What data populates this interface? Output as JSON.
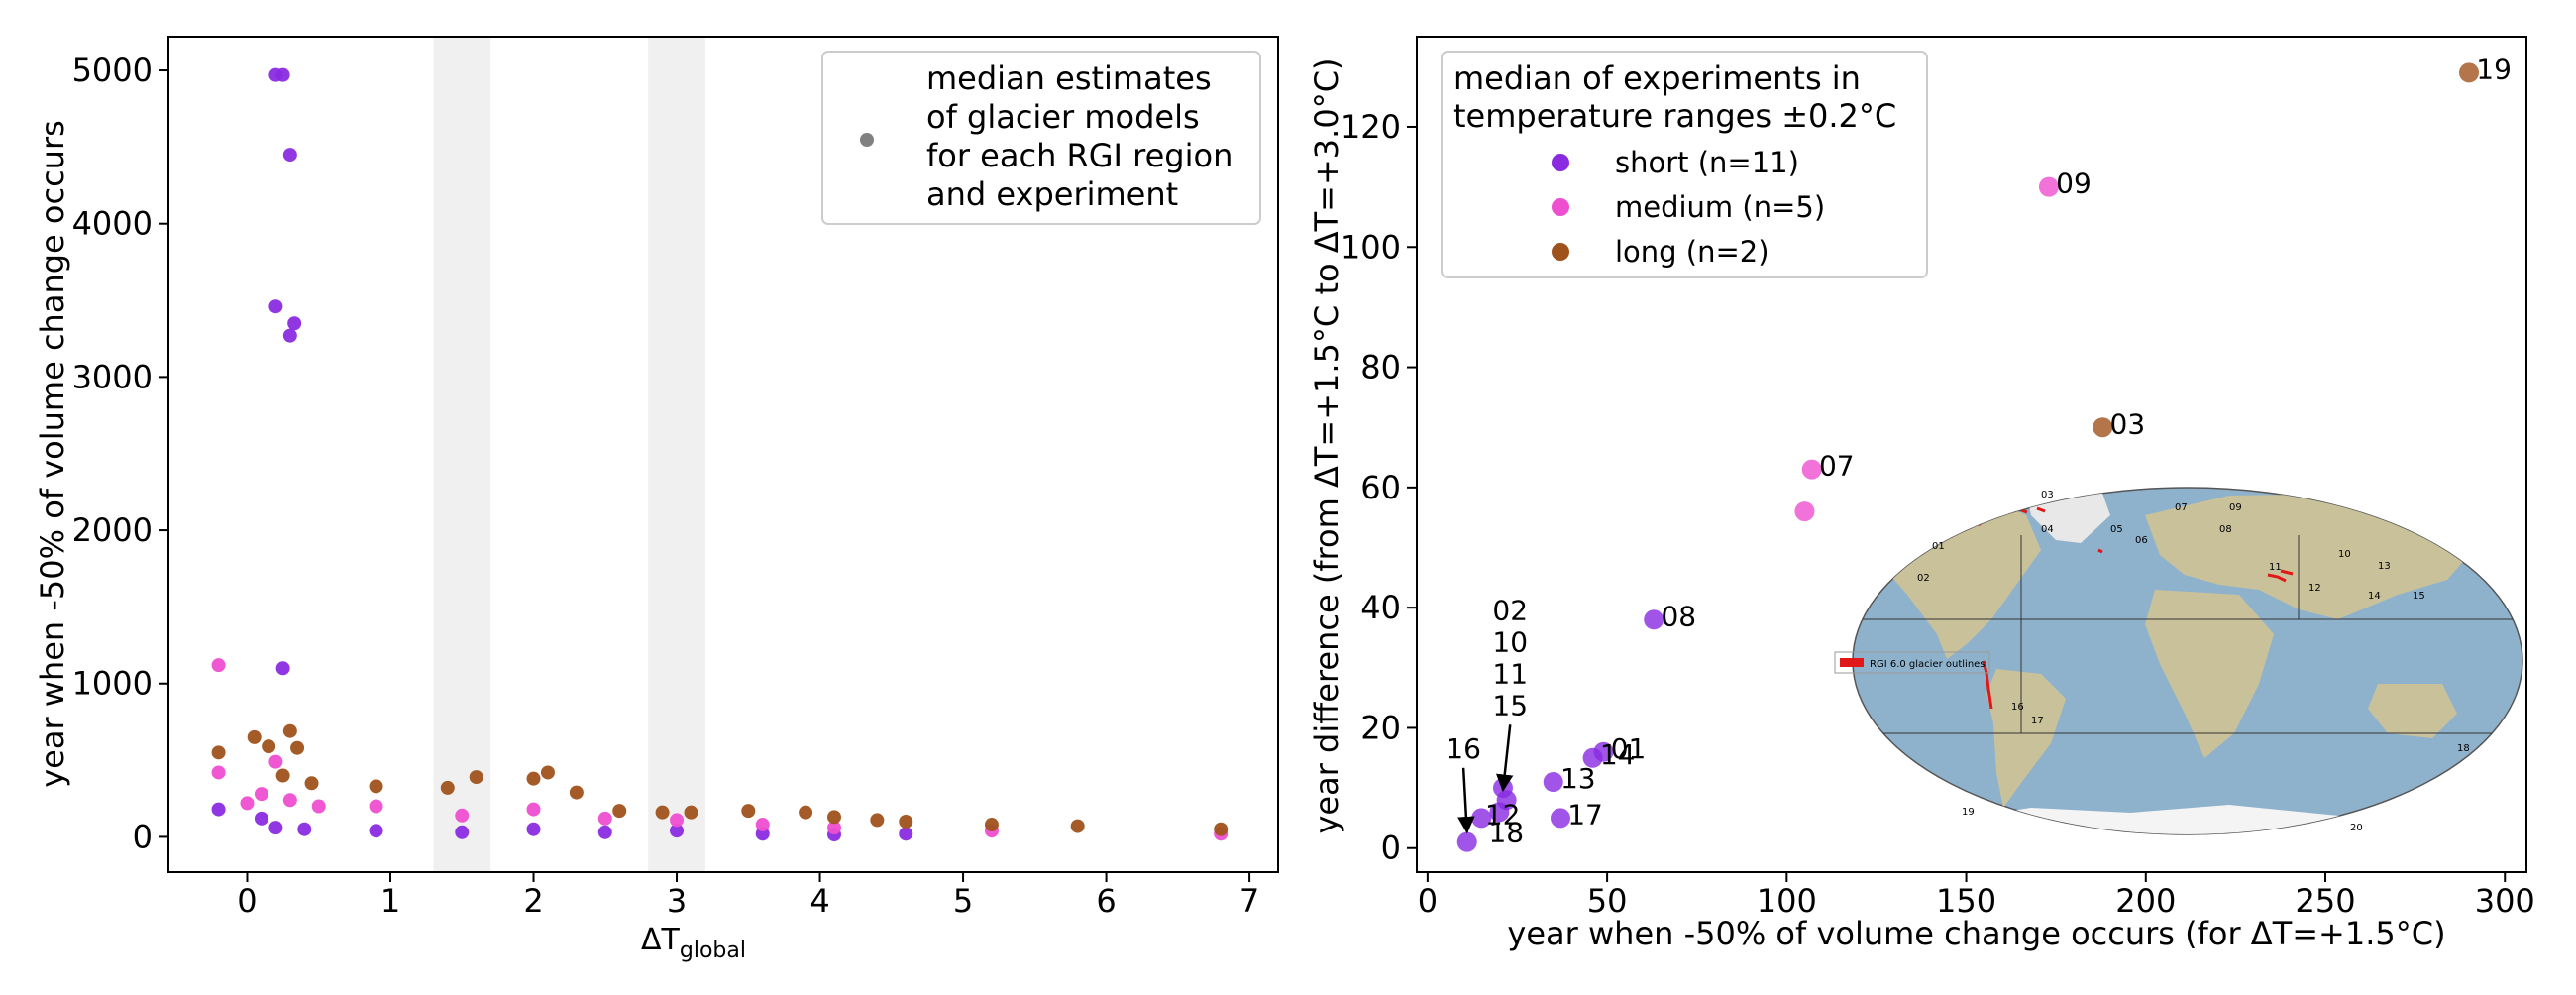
{
  "colors": {
    "short": "#8a2be2",
    "medium": "#ee4fd0",
    "long": "#a0521c",
    "grey": "#808080",
    "band": "#f0f0f0",
    "map_ocean": "#8fb2cc",
    "map_land": "#c9c19a"
  },
  "chart_data": [
    {
      "type": "scatter",
      "xlabel_main": "ΔT",
      "xlabel_sub": "global",
      "ylabel": "year when -50% of volume change occurs",
      "xlim": [
        -0.55,
        7.2
      ],
      "ylim": [
        -230,
        5220
      ],
      "xticks": [
        0,
        1,
        2,
        3,
        4,
        5,
        6,
        7
      ],
      "yticks": [
        0,
        1000,
        2000,
        3000,
        4000,
        5000
      ],
      "shaded_bands": [
        [
          1.3,
          1.7
        ],
        [
          2.8,
          3.2
        ]
      ],
      "legend": {
        "position": "top-right",
        "label_lines": [
          "median estimates",
          "of glacier models",
          "for each RGI region",
          "and experiment"
        ]
      },
      "series": [
        {
          "group": "short",
          "points": [
            [
              0.2,
              4970
            ],
            [
              0.25,
              4970
            ],
            [
              0.3,
              4450
            ],
            [
              0.2,
              3460
            ],
            [
              0.3,
              3270
            ],
            [
              0.33,
              3350
            ],
            [
              0.25,
              1100
            ],
            [
              -0.2,
              180
            ],
            [
              0.1,
              120
            ],
            [
              0.2,
              60
            ],
            [
              0.4,
              50
            ],
            [
              0.9,
              40
            ],
            [
              1.5,
              30
            ],
            [
              2.0,
              50
            ],
            [
              2.5,
              30
            ],
            [
              3.0,
              40
            ],
            [
              3.6,
              20
            ],
            [
              4.1,
              15
            ],
            [
              4.6,
              20
            ]
          ]
        },
        {
          "group": "medium",
          "points": [
            [
              -0.2,
              1120
            ],
            [
              -0.2,
              420
            ],
            [
              0.2,
              490
            ],
            [
              0.0,
              220
            ],
            [
              0.1,
              280
            ],
            [
              0.3,
              240
            ],
            [
              0.5,
              200
            ],
            [
              0.9,
              200
            ],
            [
              1.5,
              140
            ],
            [
              2.0,
              180
            ],
            [
              2.5,
              120
            ],
            [
              3.0,
              110
            ],
            [
              3.6,
              80
            ],
            [
              4.1,
              60
            ],
            [
              5.2,
              40
            ],
            [
              6.8,
              20
            ]
          ]
        },
        {
          "group": "long",
          "points": [
            [
              -0.2,
              550
            ],
            [
              0.05,
              650
            ],
            [
              0.15,
              590
            ],
            [
              0.3,
              690
            ],
            [
              0.35,
              580
            ],
            [
              0.25,
              400
            ],
            [
              0.45,
              350
            ],
            [
              0.9,
              330
            ],
            [
              1.4,
              320
            ],
            [
              1.6,
              390
            ],
            [
              2.0,
              380
            ],
            [
              2.1,
              420
            ],
            [
              2.3,
              290
            ],
            [
              2.6,
              170
            ],
            [
              2.9,
              160
            ],
            [
              3.1,
              160
            ],
            [
              3.5,
              170
            ],
            [
              3.9,
              160
            ],
            [
              4.1,
              130
            ],
            [
              4.4,
              110
            ],
            [
              4.6,
              100
            ],
            [
              5.2,
              80
            ],
            [
              5.8,
              70
            ],
            [
              6.8,
              50
            ]
          ]
        }
      ]
    },
    {
      "type": "scatter",
      "xlabel": "year when -50% of volume change occurs (for ΔT=+1.5°C)",
      "ylabel": "year difference (from ΔT=+1.5°C to ΔT=+3.0°C)",
      "xlim": [
        -3,
        306
      ],
      "ylim": [
        -4,
        135
      ],
      "xticks": [
        0,
        50,
        100,
        150,
        200,
        250,
        300
      ],
      "yticks": [
        0,
        20,
        40,
        60,
        80,
        100,
        120
      ],
      "legend": {
        "position": "top-left",
        "title_lines": [
          "median of experiments in",
          "temperature ranges ±0.2°C"
        ],
        "entries": [
          {
            "group": "short",
            "label": "short (n=11)"
          },
          {
            "group": "medium",
            "label": "medium (n=5)"
          },
          {
            "group": "long",
            "label": "long (n=2)"
          }
        ]
      },
      "points": [
        {
          "x": 11,
          "y": 1,
          "group": "short",
          "label": "18",
          "lx": 17,
          "ly": 1
        },
        {
          "x": 15,
          "y": 5,
          "group": "short",
          "label": "12",
          "lx": 16,
          "ly": 4
        },
        {
          "x": 20,
          "y": 6,
          "group": "short",
          "label": "",
          "lx": 0,
          "ly": 0
        },
        {
          "x": 22,
          "y": 8,
          "group": "short",
          "label": "",
          "lx": 0,
          "ly": 0
        },
        {
          "x": 21,
          "y": 10,
          "group": "short",
          "label": "",
          "lx": 0,
          "ly": 0
        },
        {
          "x": 35,
          "y": 11,
          "group": "short",
          "label": "13",
          "lx": 37,
          "ly": 10
        },
        {
          "x": 37,
          "y": 5,
          "group": "short",
          "label": "17",
          "lx": 39,
          "ly": 4
        },
        {
          "x": 46,
          "y": 15,
          "group": "short",
          "label": "14",
          "lx": 48,
          "ly": 14
        },
        {
          "x": 49,
          "y": 16,
          "group": "short",
          "label": "01",
          "lx": 51,
          "ly": 15
        },
        {
          "x": 63,
          "y": 38,
          "group": "short",
          "label": "08",
          "lx": 65,
          "ly": 37
        },
        {
          "x": 105,
          "y": 56,
          "group": "medium",
          "label": "",
          "lx": 0,
          "ly": 0
        },
        {
          "x": 107,
          "y": 63,
          "group": "medium",
          "label": "07",
          "lx": 109,
          "ly": 62
        },
        {
          "x": 173,
          "y": 110,
          "group": "medium",
          "label": "09",
          "lx": 175,
          "ly": 109
        },
        {
          "x": 188,
          "y": 70,
          "group": "long",
          "label": "03",
          "lx": 190,
          "ly": 69
        },
        {
          "x": 290,
          "y": 129,
          "group": "long",
          "label": "19",
          "lx": 292,
          "ly": 128
        }
      ],
      "annotations": [
        {
          "lines": [
            "02",
            "10",
            "11",
            "15"
          ],
          "x": 23,
          "y_top": 38,
          "arrow_to": [
            21,
            8
          ]
        },
        {
          "lines": [
            "16"
          ],
          "x": 10,
          "y_top": 15,
          "arrow_to": [
            11,
            1
          ]
        }
      ],
      "inset_map": {
        "legend_label": "RGI 6.0 glacier outlines",
        "region_labels": [
          "01",
          "02",
          "03",
          "04",
          "05",
          "06",
          "07",
          "08",
          "09",
          "10",
          "11",
          "12",
          "13",
          "14",
          "15",
          "16",
          "17",
          "18",
          "19",
          "20"
        ]
      }
    }
  ]
}
